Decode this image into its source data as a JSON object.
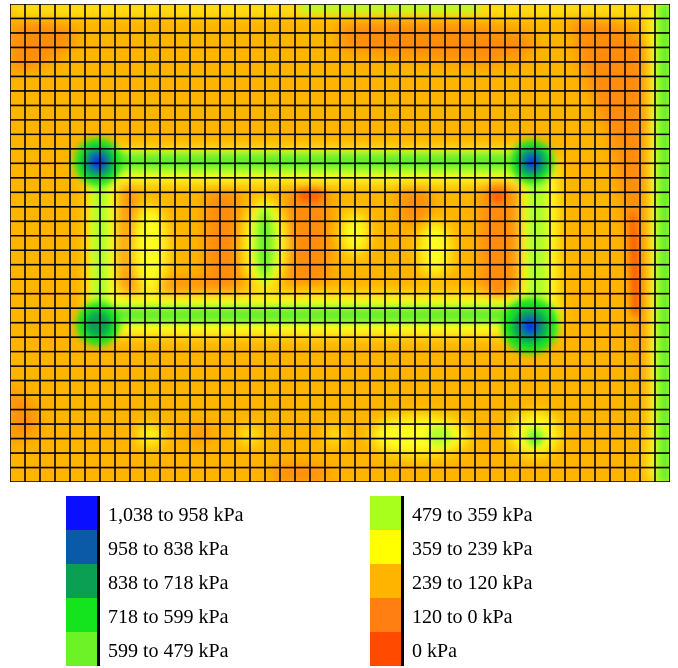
{
  "chart_data": {
    "type": "heatmap",
    "title": "",
    "grid": true,
    "legend_placement": "bottom",
    "legend": [
      {
        "label": "1,038 to 958 kPa",
        "color": "#0a10ff"
      },
      {
        "label": "958 to 838 kPa",
        "color": "#0b5aa8"
      },
      {
        "label": "838 to 718 kPa",
        "color": "#0a9f52"
      },
      {
        "label": "718 to 599 kPa",
        "color": "#14e41e"
      },
      {
        "label": "599 to 479 kPa",
        "color": "#6cf227"
      },
      {
        "label": "479 to 359 kPa",
        "color": "#a8ff1c"
      },
      {
        "label": "359 to 239 kPa",
        "color": "#ffff00"
      },
      {
        "label": "239 to 120 kPa",
        "color": "#ffb400"
      },
      {
        "label": "120 to 0 kPa",
        "color": "#ff7f13"
      },
      {
        "label": "0 kPa",
        "color": "#ff4a00"
      }
    ],
    "peak_pressure_regions": [
      {
        "region": "upper-left column",
        "range": "1,038 to 958 kPa"
      },
      {
        "region": "upper-right column",
        "range": "1,038 to 958 kPa"
      },
      {
        "region": "lower-right column",
        "range": "1,038 to 958 kPa"
      },
      {
        "region": "lower-left column",
        "range": "838 to 718 kPa"
      }
    ]
  }
}
